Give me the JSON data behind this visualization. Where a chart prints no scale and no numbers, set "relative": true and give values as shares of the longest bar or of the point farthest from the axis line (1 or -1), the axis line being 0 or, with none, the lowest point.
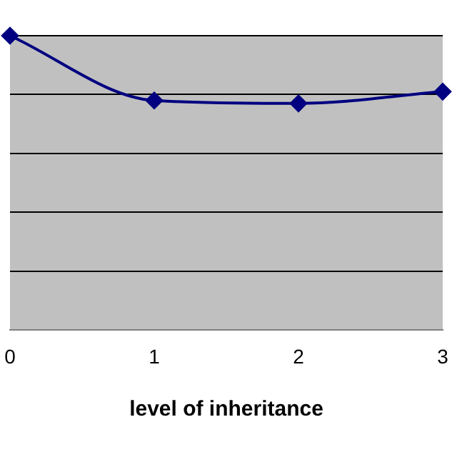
{
  "chart_data": {
    "type": "line",
    "xlabel": "level of inheritance",
    "categories": [
      "0",
      "1",
      "2",
      "3"
    ],
    "relative": true,
    "series": [
      {
        "color": "#000080",
        "values": [
          1,
          0.78,
          0.77,
          0.81
        ]
      }
    ],
    "marker": "diamond",
    "grid": "y",
    "legend": false
  }
}
